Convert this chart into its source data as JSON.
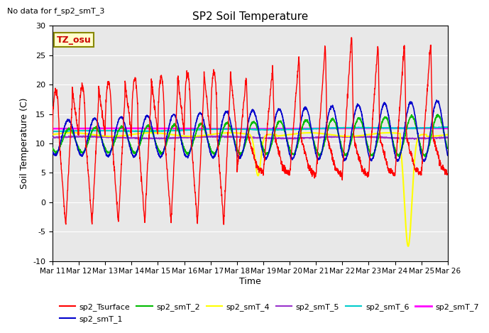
{
  "title": "SP2 Soil Temperature",
  "no_data_text": "No data for f_sp2_smT_3",
  "ylabel": "Soil Temperature (C)",
  "xlabel": "Time",
  "tz_label": "TZ_osu",
  "ylim": [
    -10,
    30
  ],
  "xlim": [
    0,
    15
  ],
  "x_tick_labels": [
    "Mar 11",
    "Mar 12",
    "Mar 13",
    "Mar 14",
    "Mar 15",
    "Mar 16",
    "Mar 17",
    "Mar 18",
    "Mar 19",
    "Mar 20",
    "Mar 21",
    "Mar 22",
    "Mar 23",
    "Mar 24",
    "Mar 25",
    "Mar 26"
  ],
  "x_tick_positions": [
    0,
    1,
    2,
    3,
    4,
    5,
    6,
    7,
    8,
    9,
    10,
    11,
    12,
    13,
    14,
    15
  ],
  "background_color": "#e8e8e8",
  "series_colors": {
    "sp2_Tsurface": "#ff0000",
    "sp2_smT_1": "#0000cc",
    "sp2_smT_2": "#00bb00",
    "sp2_smT_4": "#ffff00",
    "sp2_smT_5": "#9933cc",
    "sp2_smT_6": "#00cccc",
    "sp2_smT_7": "#ff00ff"
  },
  "grid_color": "#ffffff",
  "yticks": [
    -10,
    -5,
    0,
    5,
    10,
    15,
    20,
    25,
    30
  ]
}
